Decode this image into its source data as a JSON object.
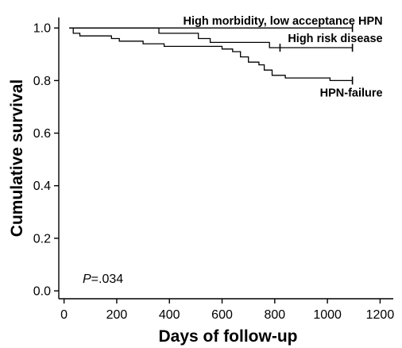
{
  "chart_data": {
    "type": "line",
    "step": true,
    "xlabel": "Days of follow-up",
    "ylabel": "Cumulative survival",
    "xlim": [
      -20,
      1250
    ],
    "ylim": [
      -0.03,
      1.04
    ],
    "xticks": [
      0,
      200,
      400,
      600,
      800,
      1000,
      1200
    ],
    "yticks": [
      "0.0",
      "0.2",
      "0.4",
      "0.6",
      "0.8",
      "1.0"
    ],
    "grid": false,
    "annotation": {
      "italic": "P",
      "rest": "=.034"
    },
    "series": [
      {
        "name": "High morbidity, low acceptance HPN",
        "label_anchor": "end",
        "points": [
          [
            20,
            1.0
          ],
          [
            1095,
            1.0
          ]
        ],
        "censored": [
          1095
        ]
      },
      {
        "name": "High risk disease",
        "label_anchor": "end",
        "points": [
          [
            20,
            1.0
          ],
          [
            360,
            1.0
          ],
          [
            360,
            0.98
          ],
          [
            510,
            0.98
          ],
          [
            510,
            0.96
          ],
          [
            555,
            0.96
          ],
          [
            555,
            0.945
          ],
          [
            780,
            0.945
          ],
          [
            780,
            0.925
          ],
          [
            1095,
            0.925
          ]
        ],
        "censored": [
          820,
          1095
        ]
      },
      {
        "name": "HPN-failure",
        "label_anchor": "end",
        "points": [
          [
            20,
            1.0
          ],
          [
            35,
            1.0
          ],
          [
            35,
            0.98
          ],
          [
            60,
            0.98
          ],
          [
            60,
            0.97
          ],
          [
            180,
            0.97
          ],
          [
            180,
            0.96
          ],
          [
            210,
            0.96
          ],
          [
            210,
            0.95
          ],
          [
            300,
            0.95
          ],
          [
            300,
            0.94
          ],
          [
            380,
            0.94
          ],
          [
            380,
            0.93
          ],
          [
            600,
            0.93
          ],
          [
            600,
            0.92
          ],
          [
            640,
            0.92
          ],
          [
            640,
            0.91
          ],
          [
            670,
            0.91
          ],
          [
            670,
            0.89
          ],
          [
            700,
            0.89
          ],
          [
            700,
            0.87
          ],
          [
            740,
            0.87
          ],
          [
            740,
            0.86
          ],
          [
            760,
            0.86
          ],
          [
            760,
            0.84
          ],
          [
            790,
            0.84
          ],
          [
            790,
            0.82
          ],
          [
            840,
            0.82
          ],
          [
            840,
            0.81
          ],
          [
            1010,
            0.81
          ],
          [
            1010,
            0.8
          ],
          [
            1095,
            0.8
          ]
        ],
        "censored": [
          1095
        ]
      }
    ]
  }
}
